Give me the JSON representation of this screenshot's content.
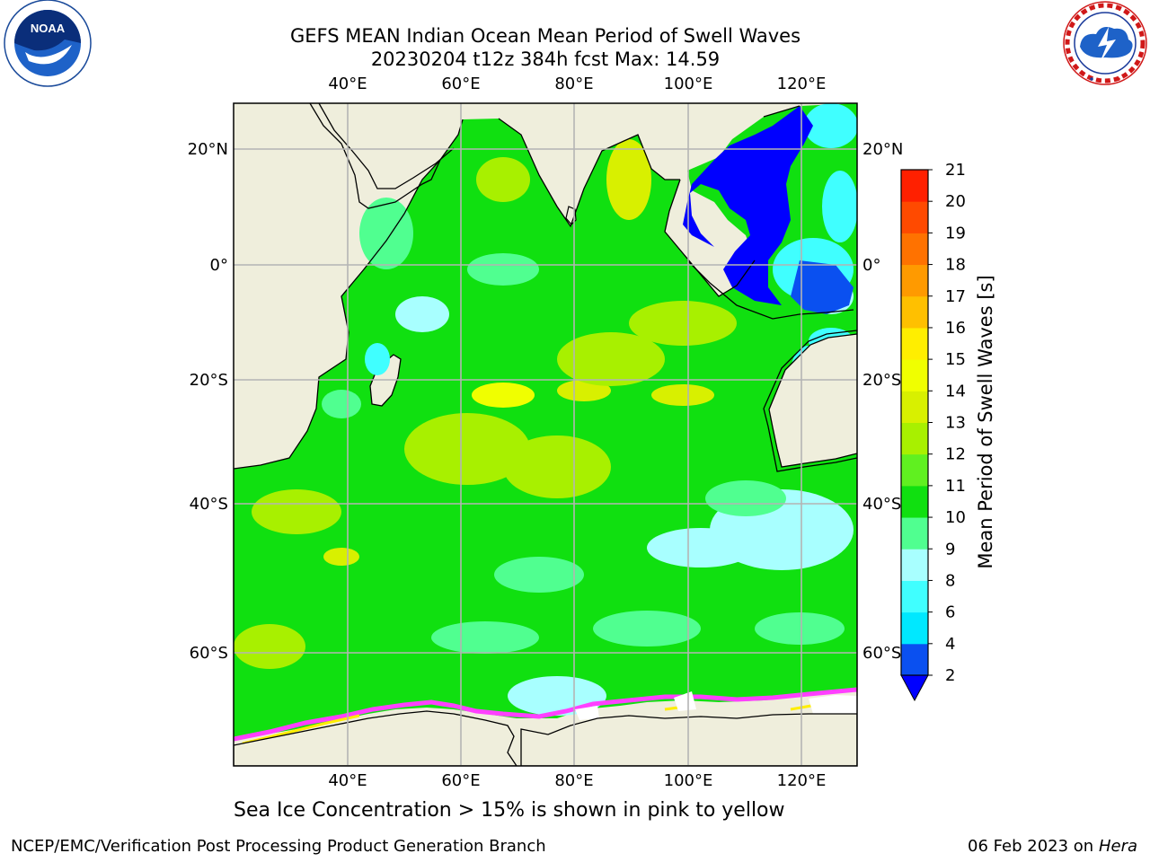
{
  "header": {
    "title_line1": "GEFS MEAN Indian Ocean Mean Period of Swell Waves",
    "title_line2": "20230204 t12z 384h fcst   Max: 14.59"
  },
  "logos": {
    "left": {
      "name": "noaa-logo",
      "text": "NOAA",
      "ring_text": "NATIONAL OCEANIC AND ATMOSPHERIC ADMINISTRATION · U.S. DEPARTMENT OF COMMERCE"
    },
    "right": {
      "name": "nws-logo",
      "ring_text": "NATIONAL WEATHER SERVICE"
    }
  },
  "map": {
    "lon_range": [
      20,
      130
    ],
    "lat_range": [
      -75,
      28
    ],
    "lon_ticks": [
      "40°E",
      "60°E",
      "80°E",
      "100°E",
      "120°E"
    ],
    "lat_ticks": [
      "20°N",
      "0°",
      "20°S",
      "40°S",
      "60°S"
    ],
    "grid": true,
    "land_color": "#efeedc",
    "ocean_base_color": "#10e010"
  },
  "colorbar": {
    "label": "Mean Period of Swell Waves [s]",
    "ticks": [
      "2",
      "4",
      "6",
      "8",
      "9",
      "10",
      "11",
      "12",
      "13",
      "14",
      "15",
      "16",
      "17",
      "18",
      "19",
      "20",
      "21"
    ],
    "colors": [
      "#0a50f0",
      "#00e8ff",
      "#40ffff",
      "#a8ffff",
      "#50ff90",
      "#10e010",
      "#60f020",
      "#a8f000",
      "#d8f000",
      "#f0ff00",
      "#ffee00",
      "#ffc000",
      "#ff9a00",
      "#ff7200",
      "#ff4a00",
      "#ff2000"
    ],
    "under_color": "#0000ff",
    "extend": "min"
  },
  "annotation": "Sea Ice Concentration > 15% is shown in pink to yellow",
  "footer": {
    "left": "NCEP/EMC/Verification Post Processing Product Generation Branch",
    "right_date": "06 Feb 2023 on",
    "right_machine": "Hera"
  }
}
